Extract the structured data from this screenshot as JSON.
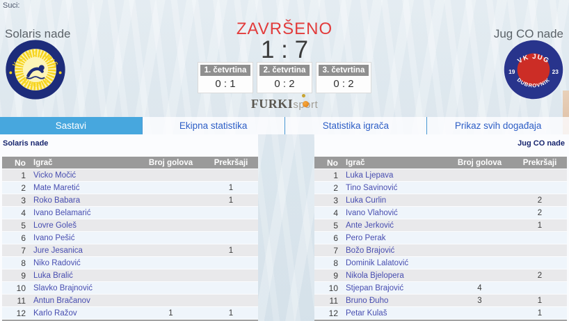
{
  "page": {
    "suci_label": "Suci:"
  },
  "match": {
    "status": "ZAVRŠENO",
    "score": "1 : 7",
    "home_team": "Solaris nade",
    "away_team": "Jug CO nade",
    "quarters": [
      {
        "label": "1. četvrtina",
        "score": "0 : 1"
      },
      {
        "label": "2. četvrtina",
        "score": "0 : 2"
      },
      {
        "label": "3. četvrtina",
        "score": "0 : 2"
      }
    ]
  },
  "brand": {
    "name": "FURKIsport",
    "serif_part": "FURKI",
    "rest_part": "sport"
  },
  "logos": {
    "home": {
      "ring_top": "V.K. SOLARIS",
      "ring_bottom": "ŠIBENIK",
      "ring_color": "#1d2c7a",
      "accent_color": "#f6d41f"
    },
    "away": {
      "ring_top": "VK JUG",
      "ring_bottom": "DUBROVNIK",
      "year_left": "19",
      "year_right": "23",
      "ring_color": "#28348c",
      "center_color": "#cc2d26"
    }
  },
  "tabs": [
    {
      "label": "Sastavi",
      "active": true
    },
    {
      "label": "Ekipna statistika",
      "active": false
    },
    {
      "label": "Statistika igrača",
      "active": false
    },
    {
      "label": "Prikaz svih događaja",
      "active": false
    }
  ],
  "rosters": {
    "columns": [
      "No",
      "Igrač",
      "Broj golova",
      "Prekršaji"
    ],
    "home": {
      "team": "Solaris nade",
      "players": [
        {
          "no": "1",
          "name": "Vicko Močić",
          "goals": "",
          "fouls": ""
        },
        {
          "no": "2",
          "name": "Mate Maretić",
          "goals": "",
          "fouls": "1"
        },
        {
          "no": "3",
          "name": "Roko Babara",
          "goals": "",
          "fouls": "1"
        },
        {
          "no": "4",
          "name": "Ivano Belamarić",
          "goals": "",
          "fouls": ""
        },
        {
          "no": "5",
          "name": "Lovre Goleš",
          "goals": "",
          "fouls": ""
        },
        {
          "no": "6",
          "name": "Ivano Pešić",
          "goals": "",
          "fouls": ""
        },
        {
          "no": "7",
          "name": "Jure Jesanica",
          "goals": "",
          "fouls": "1"
        },
        {
          "no": "8",
          "name": "Niko Radović",
          "goals": "",
          "fouls": ""
        },
        {
          "no": "9",
          "name": "Luka Bralić",
          "goals": "",
          "fouls": ""
        },
        {
          "no": "10",
          "name": "Slavko Brajnović",
          "goals": "",
          "fouls": ""
        },
        {
          "no": "11",
          "name": "Antun Bračanov",
          "goals": "",
          "fouls": ""
        },
        {
          "no": "12",
          "name": "Karlo Ražov",
          "goals": "1",
          "fouls": "1"
        }
      ]
    },
    "away": {
      "team": "Jug CO nade",
      "players": [
        {
          "no": "1",
          "name": "Luka Ljepava",
          "goals": "",
          "fouls": ""
        },
        {
          "no": "2",
          "name": "Tino Savinović",
          "goals": "",
          "fouls": ""
        },
        {
          "no": "3",
          "name": "Luka Čurlin",
          "goals": "",
          "fouls": "2"
        },
        {
          "no": "4",
          "name": "Ivano Vlahović",
          "goals": "",
          "fouls": "2"
        },
        {
          "no": "5",
          "name": "Ante Jerković",
          "goals": "",
          "fouls": "1"
        },
        {
          "no": "6",
          "name": "Pero Perak",
          "goals": "",
          "fouls": ""
        },
        {
          "no": "7",
          "name": "Božo Brajović",
          "goals": "",
          "fouls": ""
        },
        {
          "no": "8",
          "name": "Dominik Lalatović",
          "goals": "",
          "fouls": ""
        },
        {
          "no": "9",
          "name": "Nikola Bjelopera",
          "goals": "",
          "fouls": "2"
        },
        {
          "no": "10",
          "name": "Stjepan Brajović",
          "goals": "4",
          "fouls": ""
        },
        {
          "no": "11",
          "name": "Bruno Đuho",
          "goals": "3",
          "fouls": "1"
        },
        {
          "no": "12",
          "name": "Petar Kulaš",
          "goals": "",
          "fouls": "1"
        }
      ]
    }
  },
  "colors": {
    "active_tab": "#47a7de",
    "tab_text": "#2d5ec6",
    "status_red": "#e23c3c",
    "header_gray": "#9a9a9a",
    "player_name": "#474db0"
  }
}
